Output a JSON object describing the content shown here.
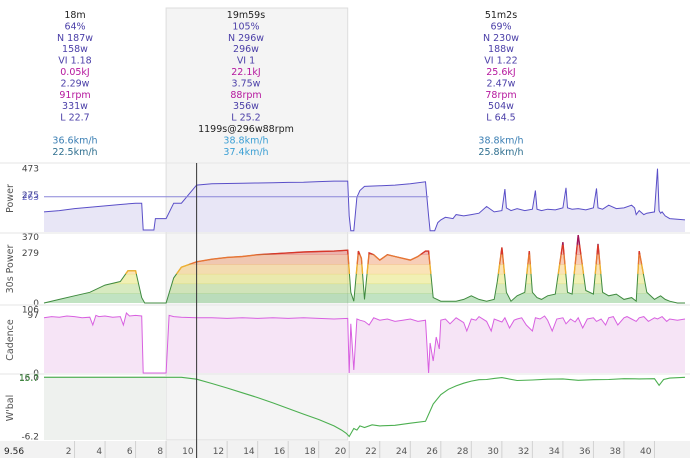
{
  "stats": {
    "columns": [
      {
        "center": 75,
        "lines": [
          {
            "text": "18m",
            "color": "#222222"
          },
          {
            "text": "64%",
            "color": "#4b3fa8"
          },
          {
            "text": "N 187w",
            "color": "#4b3fa8"
          },
          {
            "text": "158w",
            "color": "#4b3fa8"
          },
          {
            "text": "VI 1.18",
            "color": "#4b3fa8"
          },
          {
            "text": "0.05kJ",
            "color": "#b5179e"
          },
          {
            "text": "2.29w",
            "color": "#4b3fa8"
          },
          {
            "text": "91rpm",
            "color": "#b5179e"
          },
          {
            "text": "331w",
            "color": "#4b3fa8"
          },
          {
            "text": "L 22.7",
            "color": "#4b3fa8"
          },
          {
            "text": "",
            "color": "#222222"
          },
          {
            "text": "36.6km/h",
            "color": "#3b7fb4"
          },
          {
            "text": "22.5km/h",
            "color": "#2f6f8f"
          }
        ]
      },
      {
        "center": 246,
        "lines": [
          {
            "text": "19m59s",
            "color": "#222222"
          },
          {
            "text": "105%",
            "color": "#4b3fa8"
          },
          {
            "text": "N 296w",
            "color": "#4b3fa8"
          },
          {
            "text": "296w",
            "color": "#4b3fa8"
          },
          {
            "text": "VI 1",
            "color": "#4b3fa8"
          },
          {
            "text": "22.1kJ",
            "color": "#b5179e"
          },
          {
            "text": "3.75w",
            "color": "#4b3fa8"
          },
          {
            "text": "88rpm",
            "color": "#b5179e"
          },
          {
            "text": "356w",
            "color": "#4b3fa8"
          },
          {
            "text": "L 25.2",
            "color": "#4b3fa8"
          },
          {
            "text": "1199s@296w88rpm",
            "color": "#222222"
          },
          {
            "text": "38.8km/h",
            "color": "#3b9fd4"
          },
          {
            "text": "37.4km/h",
            "color": "#3b9fd4"
          }
        ]
      },
      {
        "center": 501,
        "lines": [
          {
            "text": "51m2s",
            "color": "#222222"
          },
          {
            "text": "69%",
            "color": "#4b3fa8"
          },
          {
            "text": "N 230w",
            "color": "#4b3fa8"
          },
          {
            "text": "188w",
            "color": "#4b3fa8"
          },
          {
            "text": "VI 1.22",
            "color": "#4b3fa8"
          },
          {
            "text": "25.6kJ",
            "color": "#b5179e"
          },
          {
            "text": "2.47w",
            "color": "#4b3fa8"
          },
          {
            "text": "78rpm",
            "color": "#b5179e"
          },
          {
            "text": "504w",
            "color": "#4b3fa8"
          },
          {
            "text": "L 64.5",
            "color": "#4b3fa8"
          },
          {
            "text": "",
            "color": "#222222"
          },
          {
            "text": "38.8km/h",
            "color": "#3b7fb4"
          },
          {
            "text": "25.8km/h",
            "color": "#2f6f8f"
          }
        ]
      }
    ]
  },
  "chart_data": [
    {
      "type": "area",
      "ylabel": "Power",
      "unit": "w",
      "tick_labels": [
        {
          "text": "473",
          "value": 473,
          "color": "#444444"
        },
        {
          "text": "275",
          "value": 275,
          "color": "#333388"
        },
        {
          "text": "263",
          "value": 263,
          "color": "#6a6ac8"
        }
      ],
      "ylim": [
        0,
        500
      ],
      "x": [
        0,
        1,
        2,
        3,
        4,
        5,
        6,
        6.4,
        6.5,
        7.2,
        7.3,
        7.8,
        8,
        8.5,
        9,
        10,
        11,
        12,
        13,
        14,
        15,
        16,
        17,
        18,
        19,
        19.9,
        20,
        20.1,
        20.3,
        20.5,
        20.7,
        21,
        22,
        23,
        24,
        25,
        25.2,
        25.3,
        25.6,
        25.8,
        26,
        26.3,
        26.8,
        27,
        27.5,
        28,
        28.5,
        29,
        29.5,
        30,
        30.2,
        30.3,
        30.6,
        31,
        31.5,
        32,
        32.2,
        32.3,
        32.6,
        33,
        33.5,
        34,
        34.2,
        34.3,
        34.6,
        35,
        35.5,
        36,
        36.2,
        36.3,
        36.6,
        37,
        37.5,
        38,
        38.5,
        38.7,
        38.8,
        39,
        39.3,
        39.5,
        40,
        40.2,
        40.3,
        40.4,
        40.5,
        40.7,
        41,
        41.5,
        42
      ],
      "values": [
        150,
        160,
        175,
        185,
        195,
        205,
        215,
        215,
        15,
        15,
        100,
        100,
        100,
        215,
        215,
        350,
        360,
        362,
        364,
        366,
        368,
        370,
        372,
        376,
        380,
        380,
        120,
        10,
        10,
        260,
        310,
        340,
        345,
        350,
        360,
        375,
        120,
        10,
        10,
        70,
        90,
        110,
        100,
        130,
        120,
        130,
        140,
        190,
        150,
        160,
        320,
        180,
        160,
        175,
        160,
        170,
        310,
        170,
        160,
        170,
        165,
        180,
        330,
        180,
        170,
        175,
        165,
        180,
        325,
        180,
        170,
        200,
        175,
        180,
        200,
        180,
        130,
        160,
        130,
        140,
        150,
        473,
        160,
        140,
        150,
        120,
        100,
        95,
        90
      ],
      "ref": {
        "value": 263,
        "from": 0,
        "to": 25.2
      }
    },
    {
      "type": "area",
      "ylabel": "30s Power",
      "unit": "w",
      "tick_labels": [
        {
          "text": "370",
          "value": 370,
          "color": "#444444"
        },
        {
          "text": "279",
          "value": 279,
          "color": "#444444"
        },
        {
          "text": "0",
          "value": 0,
          "color": "#444444"
        }
      ],
      "ylim": [
        0,
        380
      ],
      "x": [
        0,
        1,
        2,
        3,
        4,
        5,
        5.5,
        6,
        6.4,
        6.6,
        7.2,
        7.5,
        7.8,
        8,
        8.5,
        9,
        10,
        11,
        12,
        13,
        14,
        15,
        16,
        17,
        18,
        19,
        19.9,
        20.1,
        20.3,
        20.6,
        20.8,
        21,
        21.3,
        21.6,
        22,
        22.5,
        23,
        23.5,
        24,
        24.5,
        25,
        25.2,
        25.5,
        26,
        27,
        27.5,
        28,
        28.5,
        29,
        29.5,
        29.7,
        30,
        30.3,
        30.6,
        31,
        31.5,
        31.8,
        32,
        32.3,
        32.6,
        33,
        33.5,
        34,
        34.3,
        34.6,
        35,
        35.5,
        36,
        36.3,
        36.6,
        37,
        37.5,
        38,
        38.5,
        38.8,
        39,
        39.5,
        40,
        40.2,
        40.4,
        40.7,
        41,
        41.5,
        42
      ],
      "values": [
        0,
        20,
        40,
        60,
        100,
        120,
        180,
        180,
        30,
        0,
        0,
        0,
        0,
        0,
        140,
        200,
        230,
        245,
        255,
        260,
        270,
        275,
        280,
        285,
        288,
        290,
        295,
        60,
        10,
        290,
        250,
        20,
        280,
        270,
        240,
        270,
        260,
        250,
        240,
        260,
        290,
        290,
        30,
        10,
        10,
        20,
        40,
        20,
        10,
        20,
        120,
        310,
        60,
        10,
        40,
        60,
        290,
        60,
        30,
        20,
        40,
        50,
        340,
        60,
        50,
        380,
        70,
        50,
        330,
        60,
        40,
        50,
        20,
        30,
        10,
        290,
        60,
        20,
        30,
        40,
        20,
        10,
        0,
        0
      ],
      "zone_colors": [
        "#4caf50",
        "#8bc34a",
        "#d8d428",
        "#f0b030",
        "#e87434",
        "#d9362a",
        "#a3145a"
      ]
    },
    {
      "type": "area",
      "ylabel": "Cadence",
      "unit": "rpm",
      "tick_labels": [
        {
          "text": "106",
          "value": 106,
          "color": "#444444"
        },
        {
          "text": "97",
          "value": 97,
          "color": "#444444"
        },
        {
          "text": "0",
          "value": 0,
          "color": "#444444"
        }
      ],
      "ylim": [
        0,
        110
      ],
      "x": [
        0,
        0.5,
        1,
        1.5,
        2,
        2.5,
        3,
        3.2,
        3.4,
        3.6,
        4,
        4.5,
        5,
        5.2,
        5.4,
        5.6,
        6,
        6.4,
        6.5,
        7.2,
        7.4,
        7.8,
        8,
        8.2,
        8.5,
        9,
        10,
        11,
        12,
        13,
        14,
        15,
        16,
        17,
        18,
        19,
        19.9,
        20,
        20.1,
        20.3,
        20.5,
        20.7,
        21,
        21.3,
        21.6,
        22,
        22.5,
        23,
        23.5,
        24,
        24.5,
        25,
        25.2,
        25.3,
        25.5,
        25.7,
        25.9,
        26,
        26.3,
        26.6,
        27,
        27.5,
        27.7,
        28,
        28.3,
        28.5,
        29,
        29.3,
        29.5,
        30,
        30.2,
        30.5,
        30.8,
        31,
        31.3,
        31.6,
        32,
        32.2,
        32.5,
        32.8,
        33,
        33.3,
        33.6,
        34,
        34.2,
        34.5,
        34.8,
        35,
        35.3,
        35.6,
        36,
        36.2,
        36.5,
        36.8,
        37,
        37.3,
        37.6,
        38,
        38.2,
        38.5,
        38.8,
        39,
        39.3,
        39.6,
        40,
        40.2,
        40.5,
        40.8,
        41,
        41.5,
        42
      ],
      "values": [
        92,
        94,
        93,
        95,
        94,
        92,
        93,
        80,
        96,
        94,
        95,
        93,
        94,
        80,
        100,
        95,
        96,
        95,
        0,
        0,
        0,
        0,
        0,
        96,
        94,
        93,
        92,
        92,
        91,
        92,
        91,
        92,
        91,
        92,
        91,
        90,
        91,
        0,
        82,
        5,
        90,
        88,
        86,
        80,
        92,
        88,
        90,
        86,
        88,
        90,
        86,
        88,
        0,
        50,
        20,
        60,
        40,
        88,
        90,
        82,
        92,
        84,
        70,
        90,
        88,
        94,
        86,
        70,
        90,
        85,
        92,
        75,
        88,
        90,
        92,
        80,
        70,
        92,
        90,
        95,
        88,
        70,
        90,
        92,
        82,
        90,
        85,
        92,
        75,
        90,
        92,
        86,
        90,
        80,
        92,
        94,
        80,
        92,
        94,
        90,
        86,
        92,
        94,
        86,
        92,
        90,
        94,
        86,
        90,
        88,
        90
      ],
      "line_color": "#d860e0",
      "fill_color": "#f6e4f6"
    },
    {
      "type": "line",
      "ylabel": "W'bal",
      "unit": "kJ",
      "tick_labels": [
        {
          "text": "16.0",
          "value": 16.0,
          "color": "#444444"
        },
        {
          "text": "15.7",
          "value": 15.7,
          "color": "#3c8f3c"
        },
        {
          "text": "-6.2",
          "value": -6.2,
          "color": "#444444"
        }
      ],
      "ylim": [
        -7.5,
        16.5
      ],
      "x": [
        0,
        9,
        10,
        11,
        12,
        13,
        14,
        15,
        16,
        17,
        18,
        19,
        19.5,
        19.8,
        20,
        20.3,
        20.5,
        20.7,
        21,
        21.5,
        22,
        23,
        24,
        25,
        25.5,
        26,
        26.5,
        27,
        27.5,
        28,
        28.5,
        29,
        29.5,
        30,
        31,
        32,
        33,
        34,
        35,
        36,
        37,
        38,
        39,
        40,
        40.3,
        40.6,
        41,
        42
      ],
      "values": [
        16,
        16,
        15.3,
        13.7,
        12,
        10.2,
        8.4,
        6.4,
        4.3,
        2.2,
        0.2,
        -2.2,
        -3.8,
        -5,
        -6.2,
        -3.2,
        -3.8,
        -2.2,
        -2.8,
        -1.8,
        -2.2,
        -2,
        -1.2,
        -0.5,
        6,
        9.5,
        11.5,
        12.8,
        13.8,
        14.6,
        15.1,
        15.2,
        15.6,
        15.9,
        14.8,
        15,
        15.3,
        15.4,
        14.9,
        15.1,
        15.2,
        15.5,
        15.4,
        15.5,
        13,
        15.2,
        15.7,
        16
      ]
    }
  ],
  "x_axis": {
    "range": [
      0,
      42
    ],
    "ticks": [
      2,
      4,
      6,
      8,
      10,
      12,
      14,
      16,
      18,
      20,
      22,
      24,
      26,
      28,
      30,
      32,
      34,
      36,
      38,
      40
    ],
    "start_label": "9.56"
  },
  "selection": {
    "from": 8,
    "to": 19.9
  },
  "cursor": 10
}
